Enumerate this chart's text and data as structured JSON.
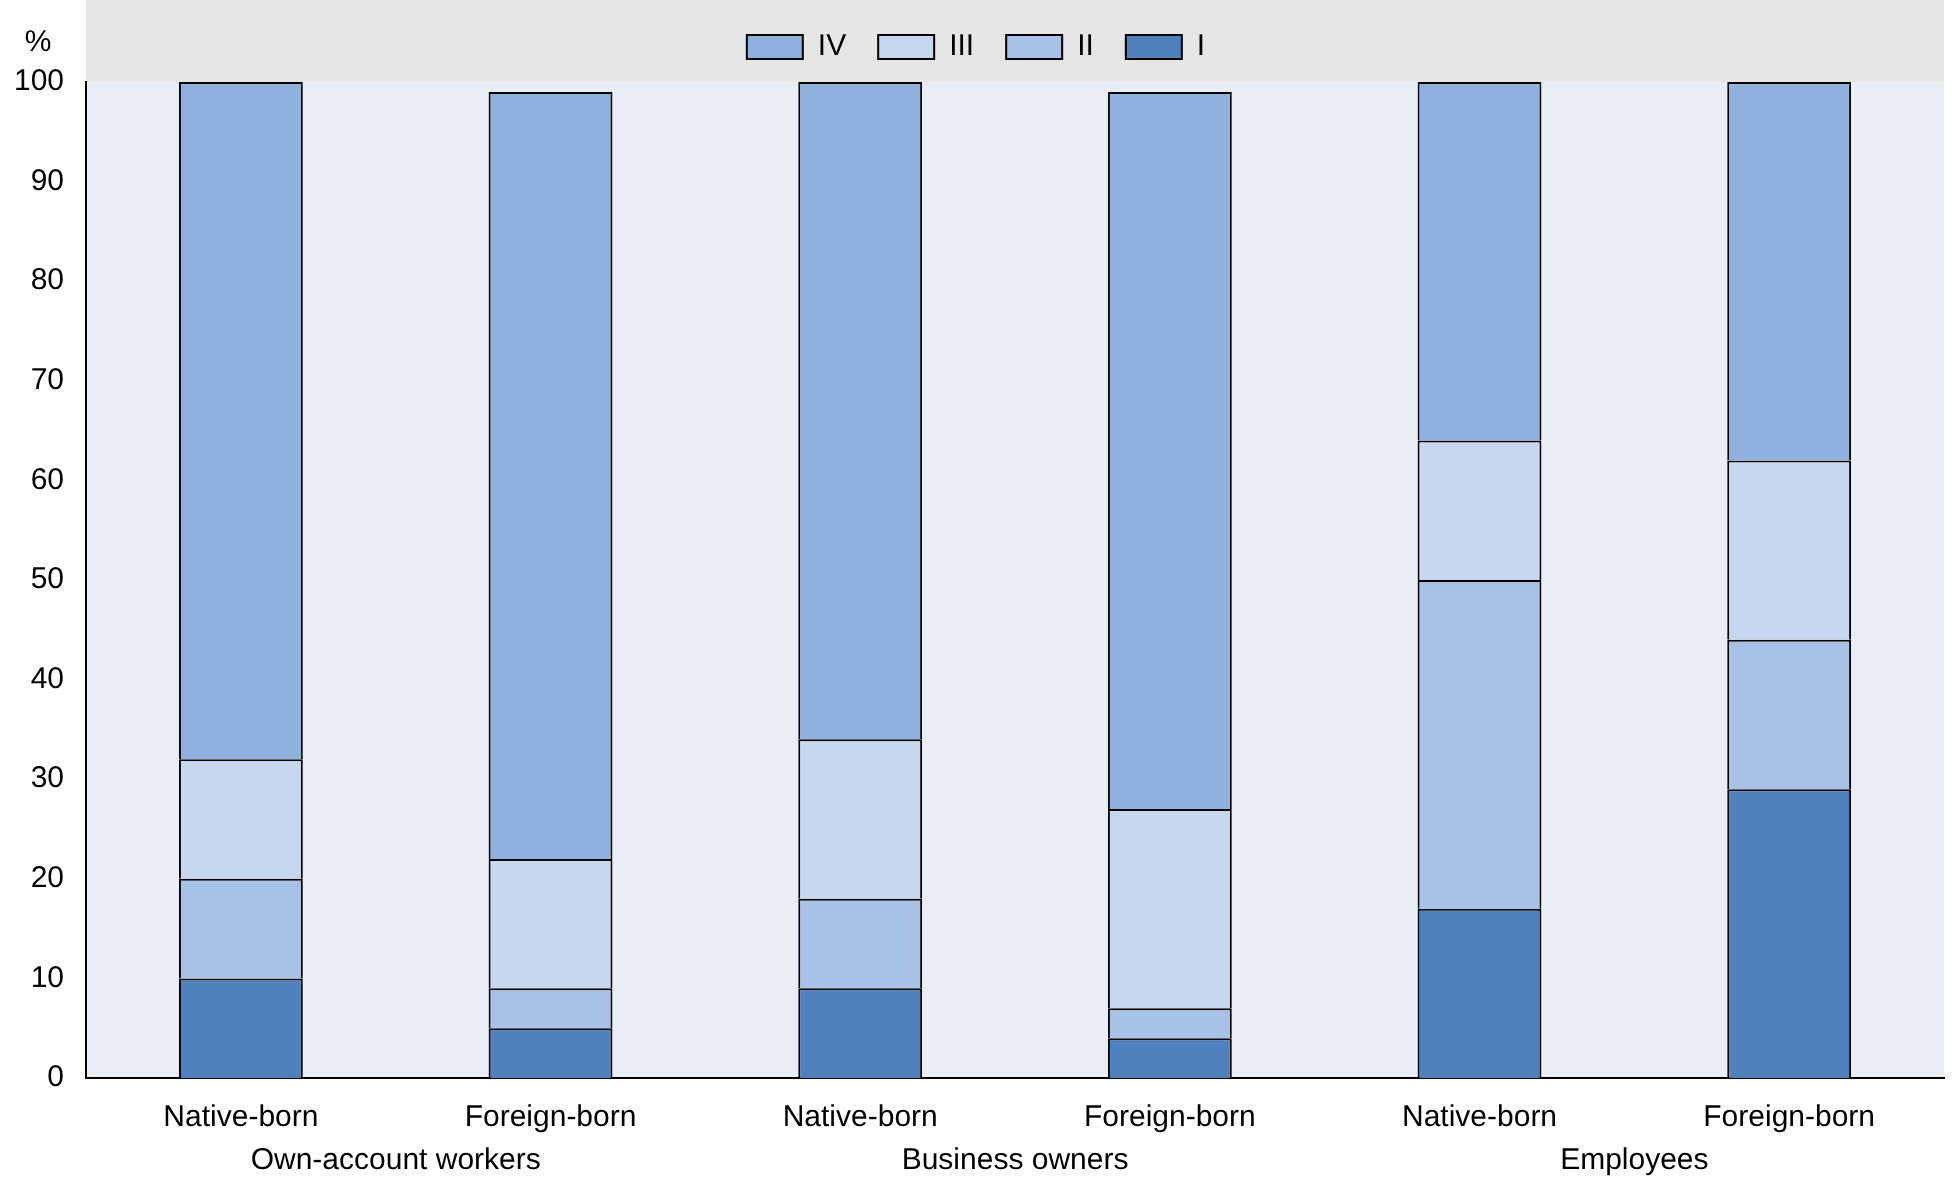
{
  "chart_data": {
    "type": "bar",
    "stacked": true,
    "ylabel": "%",
    "categories": [
      "Native-born",
      "Foreign-born",
      "Native-born",
      "Foreign-born",
      "Native-born",
      "Foreign-born"
    ],
    "annotations": [
      "Own-account workers",
      "Business owners",
      "Employees"
    ],
    "series": [
      {
        "name": "I",
        "color": "#4f81bd",
        "values": [
          10,
          5,
          9,
          4,
          17,
          29
        ]
      },
      {
        "name": "II",
        "color": "#a8c1e6",
        "values": [
          10,
          4,
          9,
          3,
          33,
          15
        ]
      },
      {
        "name": "III",
        "color": "#c6d7ef",
        "values": [
          12,
          13,
          16,
          20,
          14,
          18
        ]
      },
      {
        "name": "IV",
        "color": "#8fb1de",
        "values": [
          68,
          77,
          66,
          72,
          36,
          38
        ]
      }
    ],
    "ylim": [
      0,
      100
    ],
    "yticks": [
      0,
      10,
      20,
      30,
      40,
      50,
      60,
      70,
      80,
      90,
      100
    ],
    "grid": false,
    "legend": "top"
  }
}
